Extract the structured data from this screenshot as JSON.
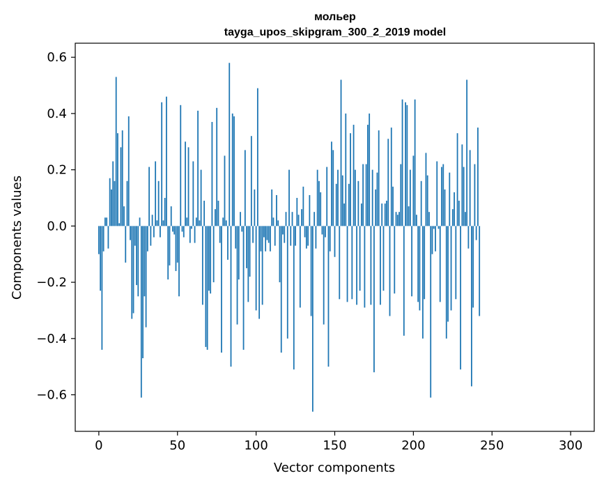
{
  "chart_data": {
    "type": "bar",
    "title": "мольер",
    "subtitle": "tayga_upos_skipgram_300_2_2019 model",
    "xlabel": "Vector components",
    "ylabel": "Components values",
    "xlim": [
      -15,
      315
    ],
    "ylim": [
      -0.73,
      0.65
    ],
    "xticks": [
      0,
      50,
      100,
      150,
      200,
      250,
      300
    ],
    "yticks": [
      -0.6,
      -0.4,
      -0.2,
      0.0,
      0.2,
      0.4,
      0.6
    ],
    "ytick_labels": [
      "−0.6",
      "−0.4",
      "−0.2",
      "0.0",
      "0.2",
      "0.4",
      "0.6"
    ],
    "bar_color": "#1f77b4",
    "values": [
      -0.1,
      -0.23,
      -0.44,
      -0.09,
      0.03,
      0.03,
      -0.08,
      0.17,
      0.13,
      0.23,
      0.16,
      0.53,
      0.33,
      0.01,
      0.28,
      0.34,
      0.07,
      -0.13,
      0.16,
      0.39,
      -0.05,
      -0.33,
      -0.31,
      -0.07,
      -0.21,
      -0.25,
      0.03,
      -0.61,
      -0.47,
      -0.25,
      -0.36,
      -0.09,
      0.21,
      -0.07,
      0.04,
      -0.04,
      0.23,
      0.02,
      0.16,
      -0.04,
      0.44,
      0.02,
      0.1,
      0.46,
      -0.19,
      -0.14,
      0.07,
      -0.02,
      -0.03,
      -0.16,
      -0.13,
      -0.25,
      0.43,
      -0.02,
      -0.04,
      0.3,
      0.03,
      0.28,
      -0.06,
      -0.01,
      0.23,
      -0.06,
      0.03,
      0.41,
      0.02,
      0.2,
      -0.28,
      0.09,
      -0.43,
      -0.44,
      -0.23,
      -0.24,
      0.37,
      -0.2,
      0.06,
      0.42,
      0.09,
      -0.06,
      -0.45,
      0.03,
      0.25,
      0.02,
      -0.12,
      0.58,
      -0.5,
      0.4,
      0.39,
      -0.08,
      -0.35,
      -0.19,
      0.05,
      -0.02,
      -0.44,
      0.27,
      -0.15,
      -0.27,
      -0.18,
      0.32,
      -0.06,
      0.13,
      -0.3,
      0.49,
      -0.33,
      -0.09,
      -0.28,
      -0.04,
      -0.09,
      -0.05,
      -0.06,
      -0.09,
      0.13,
      0.03,
      -0.07,
      0.11,
      0.02,
      -0.2,
      -0.45,
      -0.03,
      -0.06,
      0.05,
      -0.4,
      0.2,
      -0.07,
      0.05,
      -0.51,
      -0.07,
      0.1,
      0.04,
      -0.29,
      0.06,
      0.14,
      -0.04,
      -0.08,
      -0.07,
      0.11,
      -0.32,
      -0.66,
      0.05,
      -0.08,
      0.2,
      0.16,
      0.12,
      -0.03,
      -0.35,
      -0.04,
      0.21,
      -0.5,
      -0.09,
      0.3,
      0.27,
      -0.11,
      0.15,
      0.2,
      -0.26,
      0.52,
      0.18,
      0.08,
      0.4,
      -0.27,
      0.15,
      0.33,
      -0.26,
      0.36,
      0.2,
      -0.28,
      0.16,
      -0.23,
      0.08,
      0.22,
      -0.29,
      0.22,
      0.36,
      0.4,
      -0.28,
      0.2,
      -0.52,
      0.13,
      0.19,
      0.34,
      -0.28,
      0.08,
      -0.23,
      0.08,
      0.09,
      0.31,
      -0.32,
      0.35,
      0.14,
      -0.24,
      0.05,
      0.04,
      0.05,
      0.22,
      0.45,
      -0.39,
      0.44,
      0.43,
      0.07,
      0.2,
      -0.25,
      0.25,
      0.45,
      0.04,
      -0.27,
      -0.3,
      0.16,
      -0.4,
      -0.26,
      0.26,
      0.18,
      0.05,
      -0.61,
      -0.1,
      -0.01,
      -0.09,
      0.23,
      -0.01,
      -0.27,
      0.21,
      0.22,
      0.13,
      -0.4,
      -0.34,
      0.19,
      -0.3,
      0.06,
      0.12,
      -0.26,
      0.33,
      0.09,
      -0.51,
      0.29,
      0.21,
      0.05,
      0.52,
      -0.08,
      0.27,
      -0.57,
      -0.29,
      0.22,
      -0.05,
      0.35,
      -0.32
    ]
  }
}
